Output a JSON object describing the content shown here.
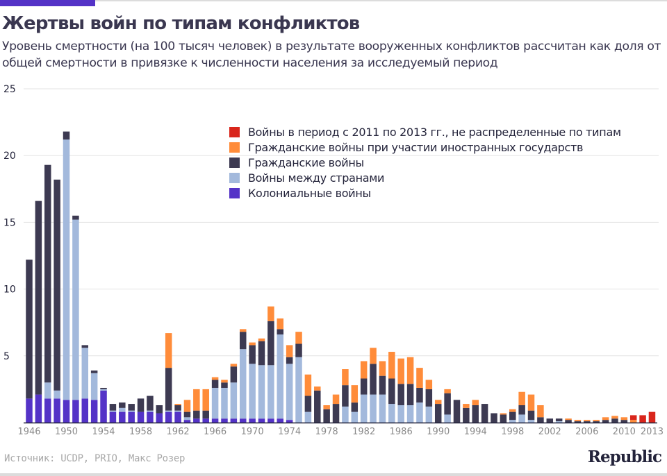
{
  "header": {
    "title": "Жертвы войн по типам конфликтов",
    "subtitle": "Уровень смертности (на 100 тысяч человек) в результате вооруженных конфликтов рассчитан как доля от общей смертности в привязке к численности населения за исследуемый период"
  },
  "footer": {
    "source": "Источник: UCDP, PRIO, Макс Розер",
    "logo": "Republic"
  },
  "colors": {
    "accent": "#5433c7",
    "colonial": "#5433c7",
    "interstate": "#a3b9dc",
    "civil": "#3d3a52",
    "civil_foreign": "#ff8c3a",
    "unallocated": "#d9261c",
    "grid": "#e3e3e3",
    "axis": "#23233a",
    "tick_text": "#8a8a8a"
  },
  "chart_data": {
    "type": "bar",
    "stacked": true,
    "title": "Жертвы войн по типам конфликтов",
    "xlabel": "",
    "ylabel": "",
    "ylim": [
      0,
      25
    ],
    "yticks": [
      5,
      10,
      15,
      20,
      25
    ],
    "xtick_labels": [
      "1946",
      "1950",
      "1954",
      "1958",
      "1962",
      "1966",
      "1970",
      "1974",
      "1978",
      "1982",
      "1986",
      "1990",
      "1994",
      "1998",
      "2002",
      "2006",
      "2010",
      "2013"
    ],
    "grid": true,
    "legend_position": "top-right",
    "categories": [
      1946,
      1947,
      1948,
      1949,
      1950,
      1951,
      1952,
      1953,
      1954,
      1955,
      1956,
      1957,
      1958,
      1959,
      1960,
      1961,
      1962,
      1963,
      1964,
      1965,
      1966,
      1967,
      1968,
      1969,
      1970,
      1971,
      1972,
      1973,
      1974,
      1975,
      1976,
      1977,
      1978,
      1979,
      1980,
      1981,
      1982,
      1983,
      1984,
      1985,
      1986,
      1987,
      1988,
      1989,
      1990,
      1991,
      1992,
      1993,
      1994,
      1995,
      1996,
      1997,
      1998,
      1999,
      2000,
      2001,
      2002,
      2003,
      2004,
      2005,
      2006,
      2007,
      2008,
      2009,
      2010,
      2011,
      2012,
      2013
    ],
    "series": [
      {
        "key": "colonial",
        "name": "Колониальные войны",
        "values": [
          1.8,
          2.1,
          1.8,
          1.8,
          1.7,
          1.7,
          1.8,
          1.7,
          2.4,
          0.8,
          0.8,
          0.8,
          0.8,
          0.8,
          0.7,
          0.8,
          0.8,
          0.2,
          0.3,
          0.3,
          0.3,
          0.3,
          0.3,
          0.3,
          0.3,
          0.3,
          0.3,
          0.3,
          0.2,
          0,
          0,
          0,
          0,
          0,
          0,
          0,
          0,
          0,
          0,
          0,
          0,
          0,
          0,
          0,
          0,
          0,
          0,
          0,
          0,
          0,
          0,
          0,
          0,
          0,
          0,
          0,
          0,
          0,
          0,
          0,
          0,
          0,
          0,
          0,
          0,
          0,
          0,
          0
        ]
      },
      {
        "key": "interstate",
        "name": "Войны между странами",
        "values": [
          0,
          0,
          1.2,
          0.6,
          19.5,
          13.5,
          3.8,
          2.0,
          0.1,
          0.1,
          0.3,
          0.1,
          0,
          0.1,
          0,
          0.1,
          0.1,
          0.2,
          0,
          0,
          2.3,
          2.3,
          2.7,
          5.2,
          4.1,
          4.0,
          4.0,
          6.3,
          4.2,
          4.9,
          0.8,
          0,
          0,
          0,
          1.2,
          0.8,
          2.1,
          2.1,
          2.1,
          1.4,
          1.3,
          1.3,
          1.5,
          1.2,
          0,
          0.6,
          0,
          0,
          0,
          0,
          0,
          0,
          0.2,
          0.6,
          0.2,
          0,
          0,
          0.1,
          0,
          0,
          0,
          0,
          0,
          0,
          0,
          0,
          0,
          0
        ]
      },
      {
        "key": "civil",
        "name": "Гражданские войны",
        "values": [
          10.4,
          14.5,
          16.3,
          15.8,
          0.6,
          0.3,
          0.2,
          0.2,
          0.1,
          0.5,
          0.4,
          0.5,
          1.0,
          1.1,
          0.6,
          3.2,
          0.4,
          0.4,
          0.6,
          0.6,
          0.6,
          0.4,
          1.2,
          1.3,
          1.4,
          1.8,
          3.3,
          0.4,
          0.5,
          1.0,
          1.2,
          2.4,
          1.0,
          1.4,
          1.6,
          0.7,
          1.2,
          2.3,
          1.4,
          1.9,
          1.6,
          1.6,
          1.1,
          1.3,
          1.4,
          1.6,
          1.7,
          1.1,
          1.3,
          1.4,
          0.7,
          0.6,
          0.6,
          0.7,
          0.7,
          0.4,
          0.3,
          0.2,
          0.2,
          0.1,
          0.1,
          0.1,
          0.2,
          0.3,
          0.2,
          0,
          0,
          0
        ]
      },
      {
        "key": "civil_foreign",
        "name": "Гражданские войны при участии иностранных государств",
        "values": [
          0,
          0,
          0,
          0,
          0,
          0,
          0,
          0,
          0,
          0,
          0,
          0,
          0,
          0,
          0,
          2.6,
          0.1,
          0.9,
          1.6,
          1.6,
          0.2,
          0.2,
          0.2,
          0.2,
          0.2,
          0.2,
          1.1,
          0.8,
          0.9,
          0.9,
          1.6,
          0.3,
          0.3,
          0.7,
          1.2,
          1.3,
          1.3,
          1.2,
          1.1,
          2.0,
          1.9,
          2.0,
          1.5,
          0.7,
          0.3,
          0.3,
          0,
          0.3,
          0.4,
          0,
          0,
          0.1,
          0.2,
          1.0,
          1.2,
          0.9,
          0,
          0,
          0.1,
          0.1,
          0.1,
          0.1,
          0.2,
          0.2,
          0.2,
          0.2,
          0,
          0
        ]
      },
      {
        "key": "unallocated",
        "name": "Войны в период с 2011 по 2013 гг., не распределенные по типам",
        "values": [
          0,
          0,
          0,
          0,
          0,
          0,
          0,
          0,
          0,
          0,
          0,
          0,
          0,
          0,
          0,
          0,
          0,
          0,
          0,
          0,
          0,
          0,
          0,
          0,
          0,
          0,
          0,
          0,
          0,
          0,
          0,
          0,
          0,
          0,
          0,
          0,
          0,
          0,
          0,
          0,
          0,
          0,
          0,
          0,
          0,
          0,
          0,
          0,
          0,
          0,
          0,
          0,
          0,
          0,
          0,
          0,
          0,
          0,
          0,
          0,
          0,
          0,
          0,
          0,
          0,
          0.35,
          0.55,
          0.8
        ]
      }
    ],
    "legend_order": [
      "unallocated",
      "civil_foreign",
      "civil",
      "interstate",
      "colonial"
    ]
  }
}
